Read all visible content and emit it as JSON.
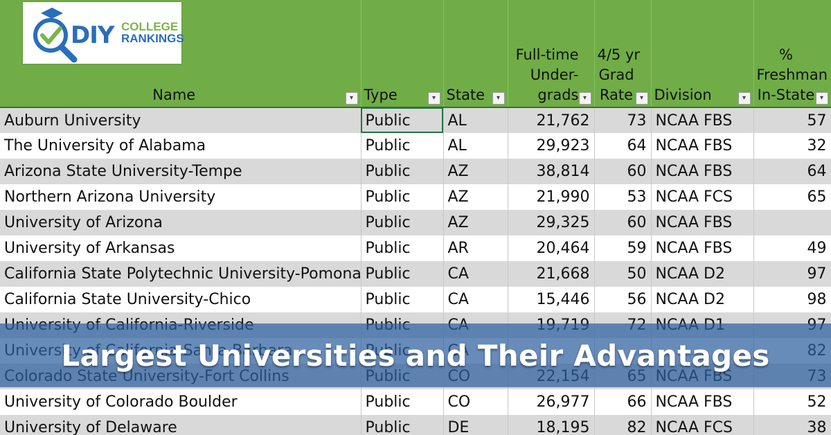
{
  "logo": {
    "brand_mark": "DIY",
    "word1": "COLLEGE",
    "word2": "RANKINGS"
  },
  "headers": {
    "name": "Name",
    "type": "Type",
    "state": "State",
    "undergrads_1": "Full-time",
    "undergrads_2": "Under-",
    "undergrads_3": "grads",
    "grad_1": "4/5 yr",
    "grad_2": "Grad",
    "grad_3": "Rate",
    "division": "Division",
    "frosh_1": "%",
    "frosh_2": "Freshman",
    "frosh_3": "In-State"
  },
  "rows": [
    {
      "name": "Auburn University",
      "type": "Public",
      "state": "AL",
      "undergrads": "21,762",
      "grad_rate": "73",
      "division": "NCAA FBS",
      "in_state": "57"
    },
    {
      "name": "The University of Alabama",
      "type": "Public",
      "state": "AL",
      "undergrads": "29,923",
      "grad_rate": "64",
      "division": "NCAA FBS",
      "in_state": "32"
    },
    {
      "name": "Arizona State University-Tempe",
      "type": "Public",
      "state": "AZ",
      "undergrads": "38,814",
      "grad_rate": "60",
      "division": "NCAA FBS",
      "in_state": "64"
    },
    {
      "name": "Northern Arizona University",
      "type": "Public",
      "state": "AZ",
      "undergrads": "21,990",
      "grad_rate": "53",
      "division": "NCAA FCS",
      "in_state": "65"
    },
    {
      "name": "University of Arizona",
      "type": "Public",
      "state": "AZ",
      "undergrads": "29,325",
      "grad_rate": "60",
      "division": "NCAA FBS",
      "in_state": ""
    },
    {
      "name": "University of Arkansas",
      "type": "Public",
      "state": "AR",
      "undergrads": "20,464",
      "grad_rate": "59",
      "division": "NCAA FBS",
      "in_state": "49"
    },
    {
      "name": "California State Polytechnic University-Pomona",
      "type": "Public",
      "state": "CA",
      "undergrads": "21,668",
      "grad_rate": "50",
      "division": "NCAA D2",
      "in_state": "97"
    },
    {
      "name": "California State University-Chico",
      "type": "Public",
      "state": "CA",
      "undergrads": "15,446",
      "grad_rate": "56",
      "division": "NCAA D2",
      "in_state": "98"
    },
    {
      "name": "University of California-Riverside",
      "type": "Public",
      "state": "CA",
      "undergrads": "19,719",
      "grad_rate": "72",
      "division": "NCAA D1",
      "in_state": "97"
    },
    {
      "name": "University of California-Santa Barbara",
      "type": "Public",
      "state": "CA",
      "undergrads": "",
      "grad_rate": "",
      "division": "",
      "in_state": "82"
    },
    {
      "name": "Colorado State University-Fort Collins",
      "type": "Public",
      "state": "CO",
      "undergrads": "22,154",
      "grad_rate": "65",
      "division": "NCAA FBS",
      "in_state": "73"
    },
    {
      "name": "University of Colorado Boulder",
      "type": "Public",
      "state": "CO",
      "undergrads": "26,977",
      "grad_rate": "66",
      "division": "NCAA FBS",
      "in_state": "52"
    },
    {
      "name": "University of Delaware",
      "type": "Public",
      "state": "DE",
      "undergrads": "18,195",
      "grad_rate": "82",
      "division": "NCAA FCS",
      "in_state": "38"
    }
  ],
  "banner": {
    "title": "Largest Universities and Their Advantages"
  }
}
